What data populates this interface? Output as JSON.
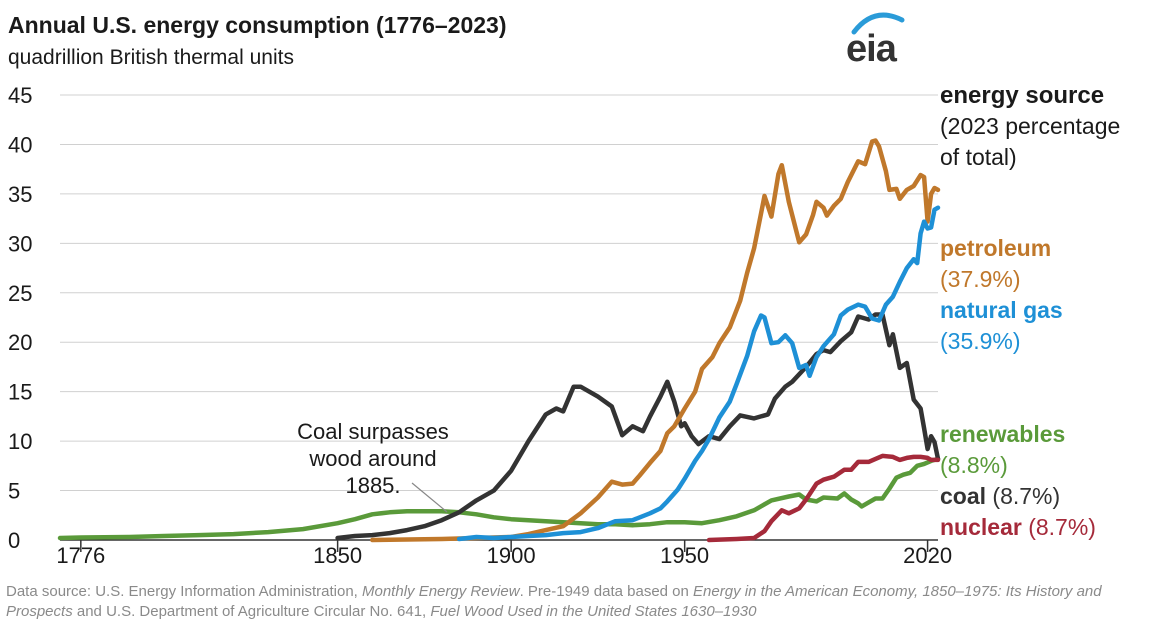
{
  "header": {
    "title": "Annual U.S. energy consumption (1776–2023)",
    "subtitle": "quadrillion British thermal units",
    "logo_text": "eia"
  },
  "legend": {
    "heading": "energy source",
    "subheading_line1": "(2023 percentage",
    "subheading_line2": "of total)",
    "items": [
      {
        "name": "petroleum",
        "pct": "(37.9%)",
        "color": "#C0782B"
      },
      {
        "name": "natural gas",
        "pct": "(35.9%)",
        "color": "#1E90D6"
      },
      {
        "name": "renewables",
        "pct": "(8.8%)",
        "color": "#5A9A3A"
      },
      {
        "name": "coal",
        "pct": "(8.7%)",
        "color": "#333333"
      },
      {
        "name": "nuclear",
        "pct": "(8.7%)",
        "color": "#A52A3A"
      }
    ]
  },
  "annotation": {
    "line1": "Coal surpasses",
    "line2": "wood around",
    "line3": "1885."
  },
  "footer": {
    "p1": "Data source: U.S. Energy Information Administration, ",
    "i1": "Monthly Energy Review",
    "p2": ". Pre-1949 data based on ",
    "i2": "Energy in the American Economy, 1850–1975: Its History and Prospects",
    "p3": " and U.S. Department of Agriculture Circular No. 641, ",
    "i3": "Fuel Wood Used in the United States 1630–1930"
  },
  "chart_data": {
    "type": "line",
    "title": "Annual U.S. energy consumption (1776–2023)",
    "ylabel": "quadrillion British thermal units",
    "xlim": [
      1770,
      2023
    ],
    "ylim": [
      0,
      45
    ],
    "yticks": [
      0,
      5,
      10,
      15,
      20,
      25,
      30,
      35,
      40,
      45
    ],
    "xticks": [
      {
        "label": "1776",
        "value": 1776
      },
      {
        "label": "1850",
        "value": 1850
      },
      {
        "label": "1900",
        "value": 1900
      },
      {
        "label": "1950",
        "value": 1950
      },
      {
        "label": "2020",
        "value": 2020
      }
    ],
    "series": [
      {
        "name": "renewables",
        "color": "#5A9A3A",
        "points": [
          [
            1770,
            0.2
          ],
          [
            1776,
            0.25
          ],
          [
            1790,
            0.3
          ],
          [
            1800,
            0.4
          ],
          [
            1810,
            0.5
          ],
          [
            1820,
            0.6
          ],
          [
            1830,
            0.8
          ],
          [
            1840,
            1.1
          ],
          [
            1850,
            1.7
          ],
          [
            1855,
            2.1
          ],
          [
            1860,
            2.6
          ],
          [
            1865,
            2.8
          ],
          [
            1870,
            2.9
          ],
          [
            1875,
            2.9
          ],
          [
            1880,
            2.9
          ],
          [
            1885,
            2.8
          ],
          [
            1890,
            2.6
          ],
          [
            1895,
            2.3
          ],
          [
            1900,
            2.1
          ],
          [
            1905,
            2.0
          ],
          [
            1910,
            1.9
          ],
          [
            1915,
            1.8
          ],
          [
            1920,
            1.7
          ],
          [
            1925,
            1.6
          ],
          [
            1930,
            1.6
          ],
          [
            1935,
            1.5
          ],
          [
            1940,
            1.6
          ],
          [
            1945,
            1.8
          ],
          [
            1950,
            1.8
          ],
          [
            1955,
            1.7
          ],
          [
            1960,
            2.0
          ],
          [
            1965,
            2.4
          ],
          [
            1970,
            3.0
          ],
          [
            1975,
            4.0
          ],
          [
            1980,
            4.4
          ],
          [
            1983,
            4.6
          ],
          [
            1985,
            4.1
          ],
          [
            1988,
            3.9
          ],
          [
            1990,
            4.3
          ],
          [
            1994,
            4.2
          ],
          [
            1996,
            4.7
          ],
          [
            1998,
            4.1
          ],
          [
            2000,
            3.7
          ],
          [
            2001,
            3.4
          ],
          [
            2003,
            3.8
          ],
          [
            2005,
            4.2
          ],
          [
            2007,
            4.2
          ],
          [
            2009,
            5.2
          ],
          [
            2011,
            6.3
          ],
          [
            2013,
            6.6
          ],
          [
            2015,
            6.8
          ],
          [
            2017,
            7.5
          ],
          [
            2019,
            7.7
          ],
          [
            2021,
            8.0
          ],
          [
            2023,
            8.2
          ]
        ]
      },
      {
        "name": "coal",
        "color": "#333333",
        "points": [
          [
            1850,
            0.2
          ],
          [
            1855,
            0.4
          ],
          [
            1860,
            0.5
          ],
          [
            1865,
            0.7
          ],
          [
            1870,
            1.0
          ],
          [
            1875,
            1.4
          ],
          [
            1880,
            2.0
          ],
          [
            1885,
            2.8
          ],
          [
            1890,
            4.0
          ],
          [
            1895,
            5.0
          ],
          [
            1900,
            7.0
          ],
          [
            1905,
            10.0
          ],
          [
            1910,
            12.7
          ],
          [
            1913,
            13.3
          ],
          [
            1915,
            13.0
          ],
          [
            1918,
            15.5
          ],
          [
            1920,
            15.5
          ],
          [
            1925,
            14.5
          ],
          [
            1929,
            13.5
          ],
          [
            1932,
            10.6
          ],
          [
            1935,
            11.5
          ],
          [
            1938,
            11.0
          ],
          [
            1940,
            12.5
          ],
          [
            1943,
            14.5
          ],
          [
            1945,
            16.0
          ],
          [
            1947,
            14.0
          ],
          [
            1949,
            11.5
          ],
          [
            1950,
            11.8
          ],
          [
            1952,
            10.5
          ],
          [
            1954,
            9.7
          ],
          [
            1957,
            10.5
          ],
          [
            1960,
            10.2
          ],
          [
            1963,
            11.5
          ],
          [
            1966,
            12.6
          ],
          [
            1970,
            12.3
          ],
          [
            1972,
            12.5
          ],
          [
            1974,
            12.7
          ],
          [
            1976,
            14.3
          ],
          [
            1979,
            15.5
          ],
          [
            1981,
            16.0
          ],
          [
            1985,
            17.5
          ],
          [
            1988,
            18.8
          ],
          [
            1990,
            19.2
          ],
          [
            1992,
            19.0
          ],
          [
            1995,
            20.1
          ],
          [
            1998,
            21.0
          ],
          [
            2000,
            22.6
          ],
          [
            2003,
            22.3
          ],
          [
            2005,
            22.8
          ],
          [
            2007,
            22.8
          ],
          [
            2009,
            19.7
          ],
          [
            2010,
            20.8
          ],
          [
            2012,
            17.4
          ],
          [
            2014,
            17.9
          ],
          [
            2016,
            14.2
          ],
          [
            2018,
            13.3
          ],
          [
            2019,
            11.3
          ],
          [
            2020,
            9.2
          ],
          [
            2021,
            10.5
          ],
          [
            2022,
            9.9
          ],
          [
            2023,
            8.2
          ]
        ]
      },
      {
        "name": "petroleum",
        "color": "#C0782B",
        "points": [
          [
            1860,
            0.0
          ],
          [
            1880,
            0.1
          ],
          [
            1890,
            0.2
          ],
          [
            1900,
            0.3
          ],
          [
            1905,
            0.6
          ],
          [
            1910,
            1.0
          ],
          [
            1915,
            1.4
          ],
          [
            1920,
            2.7
          ],
          [
            1925,
            4.3
          ],
          [
            1929,
            5.9
          ],
          [
            1932,
            5.6
          ],
          [
            1935,
            5.7
          ],
          [
            1937,
            6.5
          ],
          [
            1940,
            7.8
          ],
          [
            1943,
            9.0
          ],
          [
            1945,
            10.8
          ],
          [
            1947,
            11.5
          ],
          [
            1950,
            13.3
          ],
          [
            1953,
            15.0
          ],
          [
            1955,
            17.3
          ],
          [
            1958,
            18.5
          ],
          [
            1960,
            19.9
          ],
          [
            1963,
            21.5
          ],
          [
            1966,
            24.2
          ],
          [
            1968,
            27.0
          ],
          [
            1970,
            29.5
          ],
          [
            1972,
            33.0
          ],
          [
            1973,
            34.8
          ],
          [
            1975,
            32.7
          ],
          [
            1977,
            37.0
          ],
          [
            1978,
            37.9
          ],
          [
            1980,
            34.2
          ],
          [
            1983,
            30.1
          ],
          [
            1985,
            30.9
          ],
          [
            1987,
            32.9
          ],
          [
            1988,
            34.2
          ],
          [
            1990,
            33.6
          ],
          [
            1991,
            32.8
          ],
          [
            1993,
            33.8
          ],
          [
            1995,
            34.5
          ],
          [
            1997,
            36.2
          ],
          [
            2000,
            38.3
          ],
          [
            2002,
            38.0
          ],
          [
            2004,
            40.3
          ],
          [
            2005,
            40.4
          ],
          [
            2006,
            39.8
          ],
          [
            2008,
            37.3
          ],
          [
            2009,
            35.4
          ],
          [
            2011,
            35.5
          ],
          [
            2012,
            34.5
          ],
          [
            2014,
            35.4
          ],
          [
            2016,
            35.8
          ],
          [
            2018,
            36.9
          ],
          [
            2019,
            36.7
          ],
          [
            2020,
            32.2
          ],
          [
            2021,
            35.0
          ],
          [
            2022,
            35.6
          ],
          [
            2023,
            35.4
          ]
        ]
      },
      {
        "name": "natural gas",
        "color": "#1E90D6",
        "points": [
          [
            1885,
            0.1
          ],
          [
            1890,
            0.3
          ],
          [
            1895,
            0.2
          ],
          [
            1900,
            0.3
          ],
          [
            1905,
            0.4
          ],
          [
            1910,
            0.5
          ],
          [
            1915,
            0.7
          ],
          [
            1920,
            0.8
          ],
          [
            1925,
            1.2
          ],
          [
            1930,
            1.9
          ],
          [
            1935,
            2.0
          ],
          [
            1940,
            2.7
          ],
          [
            1943,
            3.2
          ],
          [
            1945,
            3.9
          ],
          [
            1948,
            5.1
          ],
          [
            1950,
            6.2
          ],
          [
            1953,
            8.0
          ],
          [
            1955,
            9.0
          ],
          [
            1957,
            10.2
          ],
          [
            1960,
            12.4
          ],
          [
            1963,
            14.0
          ],
          [
            1965,
            15.8
          ],
          [
            1968,
            18.6
          ],
          [
            1970,
            21.1
          ],
          [
            1972,
            22.7
          ],
          [
            1973,
            22.5
          ],
          [
            1975,
            19.9
          ],
          [
            1977,
            20.0
          ],
          [
            1979,
            20.7
          ],
          [
            1981,
            19.9
          ],
          [
            1983,
            17.4
          ],
          [
            1985,
            17.7
          ],
          [
            1986,
            16.6
          ],
          [
            1988,
            18.5
          ],
          [
            1990,
            19.6
          ],
          [
            1993,
            20.8
          ],
          [
            1995,
            22.7
          ],
          [
            1997,
            23.3
          ],
          [
            2000,
            23.8
          ],
          [
            2002,
            23.6
          ],
          [
            2004,
            22.4
          ],
          [
            2006,
            22.2
          ],
          [
            2008,
            23.8
          ],
          [
            2010,
            24.6
          ],
          [
            2012,
            26.1
          ],
          [
            2014,
            27.5
          ],
          [
            2016,
            28.4
          ],
          [
            2017,
            28.0
          ],
          [
            2018,
            31.0
          ],
          [
            2019,
            32.2
          ],
          [
            2020,
            31.5
          ],
          [
            2021,
            31.6
          ],
          [
            2022,
            33.4
          ],
          [
            2023,
            33.6
          ]
        ]
      },
      {
        "name": "nuclear",
        "color": "#A52A3A",
        "points": [
          [
            1957,
            0.0
          ],
          [
            1965,
            0.1
          ],
          [
            1970,
            0.2
          ],
          [
            1973,
            0.9
          ],
          [
            1975,
            1.9
          ],
          [
            1978,
            3.0
          ],
          [
            1980,
            2.7
          ],
          [
            1983,
            3.2
          ],
          [
            1985,
            4.1
          ],
          [
            1988,
            5.7
          ],
          [
            1990,
            6.1
          ],
          [
            1993,
            6.4
          ],
          [
            1996,
            7.1
          ],
          [
            1998,
            7.1
          ],
          [
            2000,
            7.9
          ],
          [
            2003,
            7.9
          ],
          [
            2005,
            8.2
          ],
          [
            2007,
            8.5
          ],
          [
            2010,
            8.4
          ],
          [
            2012,
            8.1
          ],
          [
            2014,
            8.3
          ],
          [
            2016,
            8.4
          ],
          [
            2018,
            8.4
          ],
          [
            2020,
            8.3
          ],
          [
            2021,
            8.1
          ],
          [
            2022,
            8.1
          ],
          [
            2023,
            8.1
          ]
        ]
      }
    ]
  }
}
